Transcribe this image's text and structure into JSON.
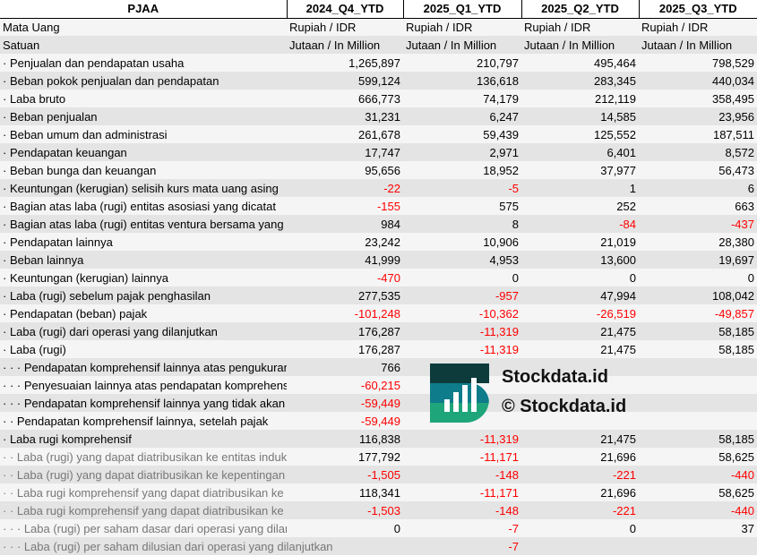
{
  "header": {
    "ticker": "PJAA",
    "periods": [
      "2024_Q4_YTD",
      "2025_Q1_YTD",
      "2025_Q2_YTD",
      "2025_Q3_YTD"
    ]
  },
  "meta": [
    {
      "label": "Mata Uang",
      "values": [
        "Rupiah / IDR",
        "Rupiah / IDR",
        "Rupiah / IDR",
        "Rupiah / IDR"
      ]
    },
    {
      "label": "Satuan",
      "values": [
        "Jutaan / In Million",
        "Jutaan / In Million",
        "Jutaan / In Million",
        "Jutaan / In Million"
      ]
    }
  ],
  "rows": [
    {
      "label": "· Penjualan dan pendapatan usaha",
      "values": [
        "1,265,897",
        "210,797",
        "495,464",
        "798,529"
      ]
    },
    {
      "label": "· Beban pokok penjualan dan pendapatan",
      "values": [
        "599,124",
        "136,618",
        "283,345",
        "440,034"
      ]
    },
    {
      "label": "· Laba bruto",
      "values": [
        "666,773",
        "74,179",
        "212,119",
        "358,495"
      ]
    },
    {
      "label": "· Beban penjualan",
      "values": [
        "31,231",
        "6,247",
        "14,585",
        "23,956"
      ]
    },
    {
      "label": "· Beban umum dan administrasi",
      "values": [
        "261,678",
        "59,439",
        "125,552",
        "187,511"
      ]
    },
    {
      "label": "· Pendapatan keuangan",
      "values": [
        "17,747",
        "2,971",
        "6,401",
        "8,572"
      ]
    },
    {
      "label": "· Beban bunga dan keuangan",
      "values": [
        "95,656",
        "18,952",
        "37,977",
        "56,473"
      ]
    },
    {
      "label": "· Keuntungan (kerugian) selisih kurs mata uang asing",
      "values": [
        "-22",
        "-5",
        "1",
        "6"
      ]
    },
    {
      "label": "· Bagian atas laba (rugi) entitas asosiasi yang dicatat",
      "values": [
        "-155",
        "575",
        "252",
        "663"
      ]
    },
    {
      "label": "· Bagian atas laba (rugi) entitas ventura bersama yang",
      "values": [
        "984",
        "8",
        "-84",
        "-437"
      ]
    },
    {
      "label": "· Pendapatan lainnya",
      "values": [
        "23,242",
        "10,906",
        "21,019",
        "28,380"
      ]
    },
    {
      "label": "· Beban lainnya",
      "values": [
        "41,999",
        "4,953",
        "13,600",
        "19,697"
      ]
    },
    {
      "label": "· Keuntungan (kerugian) lainnya",
      "values": [
        "-470",
        "0",
        "0",
        "0"
      ]
    },
    {
      "label": "· Laba (rugi) sebelum pajak penghasilan",
      "values": [
        "277,535",
        "-957",
        "47,994",
        "108,042"
      ]
    },
    {
      "label": "· Pendapatan (beban) pajak",
      "values": [
        "-101,248",
        "-10,362",
        "-26,519",
        "-49,857"
      ]
    },
    {
      "label": "· Laba (rugi) dari operasi yang dilanjutkan",
      "values": [
        "176,287",
        "-11,319",
        "21,475",
        "58,185"
      ]
    },
    {
      "label": "· Laba (rugi)",
      "values": [
        "176,287",
        "-11,319",
        "21,475",
        "58,185"
      ]
    },
    {
      "label": "· · · Pendapatan komprehensif lainnya atas pengukuran",
      "values": [
        "766",
        "",
        "",
        ""
      ]
    },
    {
      "label": "· · · Penyesuaian lainnya atas pendapatan komprehensif",
      "values": [
        "-60,215",
        "",
        "",
        ""
      ]
    },
    {
      "label": "· · · Pendapatan komprehensif lainnya yang tidak akan",
      "values": [
        "-59,449",
        "",
        "",
        ""
      ]
    },
    {
      "label": "· · Pendapatan komprehensif lainnya, setelah pajak",
      "values": [
        "-59,449",
        "",
        "",
        ""
      ]
    },
    {
      "label": "· Laba rugi komprehensif",
      "values": [
        "116,838",
        "-11,319",
        "21,475",
        "58,185"
      ]
    },
    {
      "label": "· · Laba (rugi) yang dapat diatribusikan ke entitas induk",
      "values": [
        "177,792",
        "-11,171",
        "21,696",
        "58,625"
      ],
      "sub": true
    },
    {
      "label": "· · Laba (rugi) yang dapat diatribusikan ke kepentingan",
      "values": [
        "-1,505",
        "-148",
        "-221",
        "-440"
      ],
      "sub": true
    },
    {
      "label": "· · Laba rugi komprehensif yang dapat diatribusikan ke",
      "values": [
        "118,341",
        "-11,171",
        "21,696",
        "58,625"
      ],
      "sub": true
    },
    {
      "label": "· · Laba rugi komprehensif yang dapat diatribusikan ke",
      "values": [
        "-1,503",
        "-148",
        "-221",
        "-440"
      ],
      "sub": true
    },
    {
      "label": "· · · Laba (rugi) per saham dasar dari operasi yang dilanjutkan",
      "values": [
        "0",
        "-7",
        "0",
        "37"
      ],
      "sub": true
    },
    {
      "label": "· · · Laba (rugi) per saham dilusian dari operasi yang dilanjutkan",
      "values": [
        "",
        "-7",
        "",
        ""
      ],
      "sub": true,
      "overflow": true
    }
  ],
  "watermark": {
    "logo_text": "Stockdata.id",
    "copyright": "© Stockdata.id"
  },
  "colors": {
    "negative": "#ff0000",
    "row_alt": "#e4e4e4"
  }
}
